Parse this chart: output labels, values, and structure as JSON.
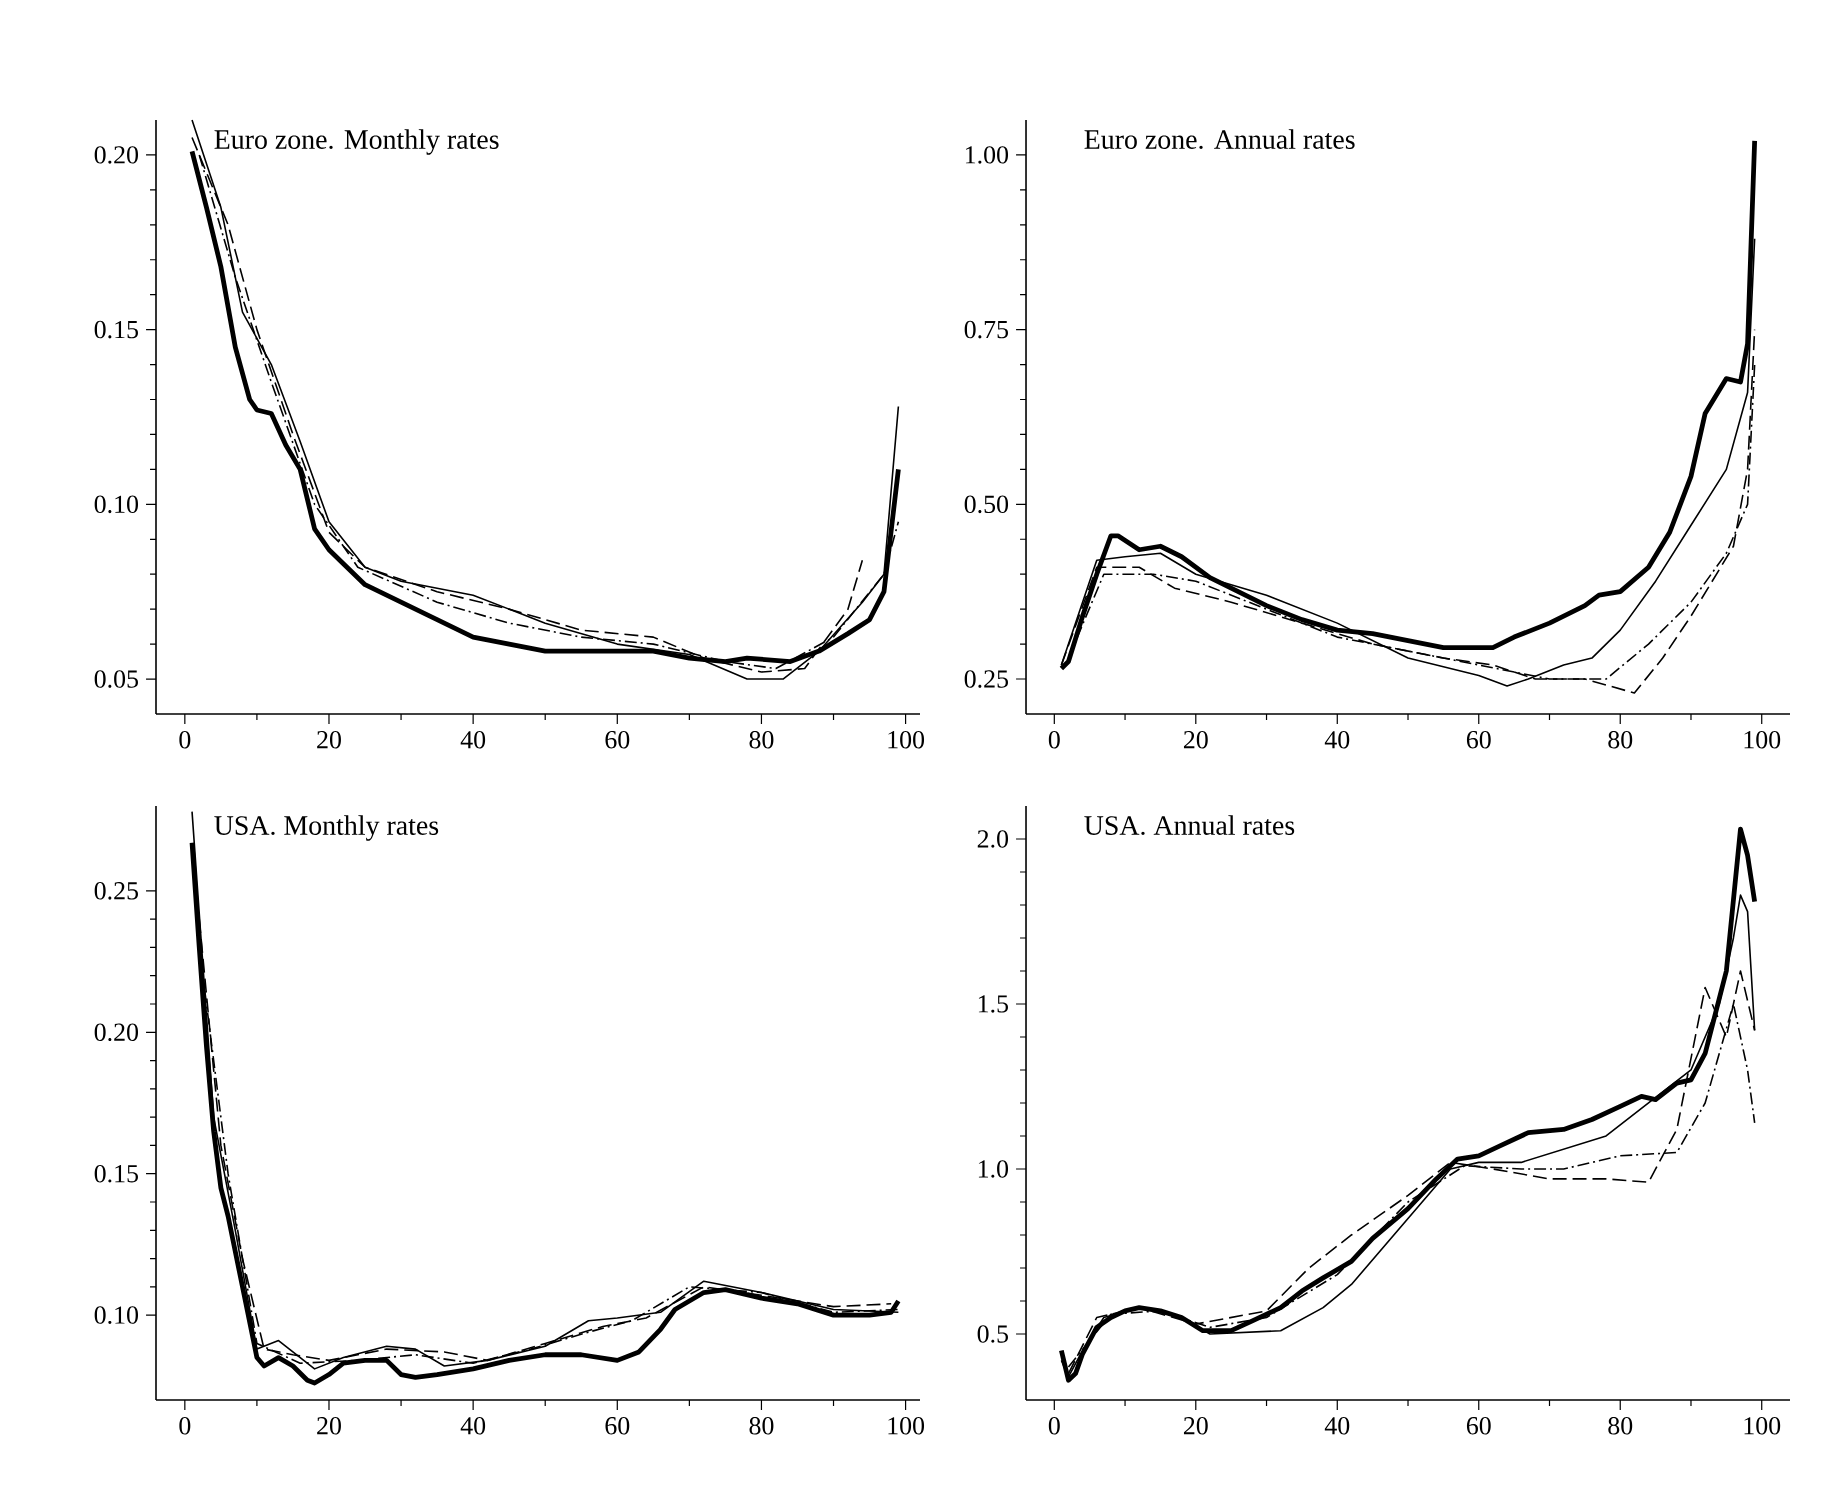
{
  "chart_data": [
    {
      "type": "line",
      "title": "Euro zone. Monthly rates",
      "xlim": [
        -4,
        102
      ],
      "ylim": [
        0.04,
        0.21
      ],
      "xticks": [
        0,
        20,
        40,
        60,
        80,
        100
      ],
      "yticks": [
        {
          "value": 0.05,
          "label": "0.05"
        },
        {
          "value": 0.1,
          "label": "0.10"
        },
        {
          "value": 0.15,
          "label": "0.15"
        },
        {
          "value": 0.2,
          "label": "0.20"
        }
      ],
      "series": [
        {
          "color": "#000000",
          "line_style": "solid",
          "x": [
            1,
            3,
            5,
            7,
            9,
            10,
            12,
            14,
            16,
            18,
            20,
            22,
            25,
            30,
            35,
            40,
            45,
            50,
            55,
            60,
            65,
            70,
            75,
            78,
            84,
            88,
            92,
            95,
            97,
            99
          ],
          "values": [
            0.201,
            0.185,
            0.168,
            0.145,
            0.13,
            0.127,
            0.126,
            0.117,
            0.11,
            0.093,
            0.087,
            0.083,
            0.077,
            0.072,
            0.067,
            0.062,
            0.06,
            0.058,
            0.058,
            0.058,
            0.058,
            0.056,
            0.055,
            0.056,
            0.055,
            0.058,
            0.063,
            0.067,
            0.075,
            0.11
          ]
        },
        {
          "color": "#000000",
          "line_style": "solid",
          "x": [
            1,
            5,
            8,
            12,
            16,
            20,
            25,
            30,
            40,
            50,
            60,
            70,
            78,
            83,
            88,
            94,
            97,
            99
          ],
          "values": [
            0.21,
            0.185,
            0.155,
            0.14,
            0.118,
            0.095,
            0.082,
            0.078,
            0.074,
            0.066,
            0.06,
            0.057,
            0.05,
            0.05,
            0.058,
            0.072,
            0.08,
            0.128
          ]
        },
        {
          "color": "#000000",
          "line_style": "dashed",
          "x": [
            1,
            6,
            10,
            15,
            20,
            25,
            35,
            45,
            55,
            65,
            72,
            80,
            86,
            92,
            94
          ],
          "values": [
            0.205,
            0.18,
            0.15,
            0.12,
            0.092,
            0.082,
            0.075,
            0.07,
            0.064,
            0.062,
            0.056,
            0.052,
            0.053,
            0.07,
            0.084
          ]
        },
        {
          "color": "#000000",
          "line_style": "dashdot",
          "x": [
            2,
            7,
            12,
            18,
            24,
            35,
            45,
            55,
            65,
            75,
            82,
            90,
            97,
            99
          ],
          "values": [
            0.2,
            0.165,
            0.135,
            0.1,
            0.082,
            0.072,
            0.066,
            0.062,
            0.06,
            0.055,
            0.053,
            0.062,
            0.08,
            0.095
          ]
        }
      ]
    },
    {
      "type": "line",
      "title": "Euro zone. Annual rates",
      "xlim": [
        -4,
        104
      ],
      "ylim": [
        0.2,
        1.05
      ],
      "xticks": [
        0,
        20,
        40,
        60,
        80,
        100
      ],
      "yticks": [
        {
          "value": 0.25,
          "label": "0.25"
        },
        {
          "value": 0.5,
          "label": "0.50"
        },
        {
          "value": 0.75,
          "label": "0.75"
        },
        {
          "value": 1.0,
          "label": "1.00"
        }
      ],
      "series": [
        {
          "color": "#000000",
          "line_style": "solid",
          "x": [
            1,
            2,
            4,
            6,
            8,
            9,
            12,
            15,
            18,
            22,
            26,
            30,
            35,
            40,
            45,
            50,
            55,
            60,
            62,
            65,
            70,
            75,
            77,
            80,
            84,
            87,
            90,
            92,
            95,
            97,
            98,
            99
          ],
          "values": [
            0.265,
            0.275,
            0.34,
            0.4,
            0.455,
            0.455,
            0.435,
            0.44,
            0.425,
            0.395,
            0.375,
            0.355,
            0.335,
            0.32,
            0.315,
            0.305,
            0.295,
            0.295,
            0.295,
            0.31,
            0.33,
            0.355,
            0.37,
            0.375,
            0.41,
            0.46,
            0.54,
            0.63,
            0.68,
            0.675,
            0.73,
            1.02
          ]
        },
        {
          "color": "#000000",
          "line_style": "solid",
          "x": [
            1,
            6,
            10,
            15,
            20,
            30,
            40,
            50,
            60,
            64,
            67,
            72,
            76,
            80,
            85,
            90,
            95,
            98,
            99
          ],
          "values": [
            0.27,
            0.42,
            0.425,
            0.43,
            0.4,
            0.37,
            0.33,
            0.28,
            0.255,
            0.24,
            0.25,
            0.27,
            0.28,
            0.32,
            0.39,
            0.47,
            0.55,
            0.66,
            0.88
          ]
        },
        {
          "color": "#000000",
          "line_style": "dashed",
          "x": [
            1,
            6,
            12,
            17,
            25,
            35,
            45,
            55,
            62,
            68,
            75,
            82,
            86,
            90,
            96,
            98,
            99
          ],
          "values": [
            0.27,
            0.41,
            0.41,
            0.38,
            0.36,
            0.33,
            0.3,
            0.28,
            0.27,
            0.25,
            0.25,
            0.23,
            0.28,
            0.34,
            0.44,
            0.55,
            0.75
          ]
        },
        {
          "color": "#000000",
          "line_style": "dashdot",
          "x": [
            2,
            7,
            14,
            20,
            30,
            40,
            50,
            60,
            70,
            78,
            84,
            90,
            95,
            98,
            99
          ],
          "values": [
            0.28,
            0.4,
            0.4,
            0.39,
            0.35,
            0.31,
            0.29,
            0.27,
            0.25,
            0.25,
            0.3,
            0.36,
            0.43,
            0.5,
            0.7
          ]
        }
      ]
    },
    {
      "type": "line",
      "title": "USA. Monthly rates",
      "xlim": [
        -4,
        102
      ],
      "ylim": [
        0.07,
        0.28
      ],
      "xticks": [
        0,
        20,
        40,
        60,
        80,
        100
      ],
      "yticks": [
        {
          "value": 0.1,
          "label": "0.10"
        },
        {
          "value": 0.15,
          "label": "0.15"
        },
        {
          "value": 0.2,
          "label": "0.20"
        },
        {
          "value": 0.25,
          "label": "0.25"
        }
      ],
      "series": [
        {
          "color": "#000000",
          "line_style": "solid",
          "x": [
            1,
            2,
            3,
            4,
            5,
            6,
            8,
            10,
            11,
            13,
            15,
            17,
            18,
            20,
            22,
            25,
            28,
            30,
            32,
            35,
            40,
            45,
            50,
            55,
            60,
            63,
            66,
            68,
            72,
            75,
            80,
            85,
            90,
            95,
            98,
            99
          ],
          "values": [
            0.267,
            0.23,
            0.195,
            0.165,
            0.145,
            0.135,
            0.11,
            0.085,
            0.082,
            0.085,
            0.082,
            0.077,
            0.076,
            0.079,
            0.083,
            0.084,
            0.084,
            0.079,
            0.078,
            0.079,
            0.081,
            0.084,
            0.086,
            0.086,
            0.084,
            0.087,
            0.095,
            0.102,
            0.108,
            0.109,
            0.106,
            0.104,
            0.1,
            0.1,
            0.101,
            0.105
          ]
        },
        {
          "color": "#000000",
          "line_style": "solid",
          "x": [
            1,
            4,
            7,
            10,
            13,
            18,
            22,
            28,
            32,
            36,
            42,
            50,
            56,
            60,
            66,
            72,
            80,
            90,
            99
          ],
          "values": [
            0.278,
            0.17,
            0.13,
            0.088,
            0.091,
            0.081,
            0.085,
            0.089,
            0.088,
            0.082,
            0.084,
            0.089,
            0.098,
            0.099,
            0.101,
            0.112,
            0.108,
            0.102,
            0.101
          ]
        },
        {
          "color": "#000000",
          "line_style": "dashed",
          "x": [
            2,
            5,
            8,
            11,
            15,
            20,
            28,
            36,
            42,
            50,
            58,
            64,
            72,
            80,
            90,
            98
          ],
          "values": [
            0.24,
            0.16,
            0.12,
            0.088,
            0.086,
            0.084,
            0.088,
            0.087,
            0.084,
            0.09,
            0.096,
            0.099,
            0.11,
            0.107,
            0.103,
            0.104
          ]
        },
        {
          "color": "#000000",
          "line_style": "dashdot",
          "x": [
            2,
            6,
            10,
            16,
            24,
            32,
            40,
            48,
            56,
            62,
            70,
            80,
            90,
            99
          ],
          "values": [
            0.23,
            0.15,
            0.09,
            0.083,
            0.084,
            0.086,
            0.083,
            0.088,
            0.094,
            0.098,
            0.11,
            0.108,
            0.101,
            0.102
          ]
        }
      ]
    },
    {
      "type": "line",
      "title": "USA. Annual rates",
      "xlim": [
        -4,
        104
      ],
      "ylim": [
        0.3,
        2.1
      ],
      "xticks": [
        0,
        20,
        40,
        60,
        80,
        100
      ],
      "yticks": [
        {
          "value": 0.5,
          "label": "0.5"
        },
        {
          "value": 1.0,
          "label": "1.0"
        },
        {
          "value": 1.5,
          "label": "1.5"
        },
        {
          "value": 2.0,
          "label": "2.0"
        }
      ],
      "series": [
        {
          "color": "#000000",
          "line_style": "solid",
          "x": [
            1,
            2,
            3,
            4,
            6,
            8,
            10,
            12,
            15,
            18,
            21,
            25,
            28,
            32,
            35,
            38,
            42,
            45,
            50,
            54,
            57,
            60,
            63,
            67,
            72,
            76,
            80,
            83,
            85,
            88,
            90,
            92,
            95,
            97,
            98,
            99
          ],
          "values": [
            0.45,
            0.36,
            0.38,
            0.44,
            0.52,
            0.55,
            0.57,
            0.58,
            0.57,
            0.55,
            0.51,
            0.51,
            0.54,
            0.58,
            0.63,
            0.67,
            0.72,
            0.79,
            0.88,
            0.97,
            1.03,
            1.04,
            1.07,
            1.11,
            1.12,
            1.15,
            1.19,
            1.22,
            1.21,
            1.26,
            1.27,
            1.35,
            1.6,
            2.03,
            1.95,
            1.81
          ]
        },
        {
          "color": "#000000",
          "line_style": "solid",
          "x": [
            1,
            2,
            4,
            7,
            12,
            18,
            22,
            32,
            38,
            42,
            50,
            56,
            60,
            66,
            72,
            78,
            84,
            90,
            94,
            96,
            97,
            98,
            99
          ],
          "values": [
            0.42,
            0.37,
            0.45,
            0.55,
            0.58,
            0.55,
            0.5,
            0.51,
            0.58,
            0.65,
            0.85,
            1.0,
            1.02,
            1.02,
            1.06,
            1.1,
            1.2,
            1.3,
            1.5,
            1.7,
            1.83,
            1.78,
            1.42
          ]
        },
        {
          "color": "#000000",
          "line_style": "dashed",
          "x": [
            2,
            6,
            12,
            20,
            30,
            36,
            42,
            50,
            56,
            62,
            70,
            78,
            84,
            88,
            92,
            95,
            97,
            99
          ],
          "values": [
            0.38,
            0.55,
            0.58,
            0.53,
            0.57,
            0.7,
            0.8,
            0.92,
            1.02,
            1.0,
            0.97,
            0.97,
            0.96,
            1.12,
            1.55,
            1.4,
            1.6,
            1.42
          ]
        },
        {
          "color": "#000000",
          "line_style": "dashdot",
          "x": [
            2,
            8,
            15,
            22,
            30,
            40,
            50,
            58,
            66,
            72,
            80,
            88,
            92,
            96,
            98,
            99
          ],
          "values": [
            0.4,
            0.56,
            0.57,
            0.52,
            0.55,
            0.68,
            0.9,
            1.01,
            1.0,
            1.0,
            1.04,
            1.05,
            1.2,
            1.5,
            1.3,
            1.14
          ]
        }
      ]
    }
  ]
}
